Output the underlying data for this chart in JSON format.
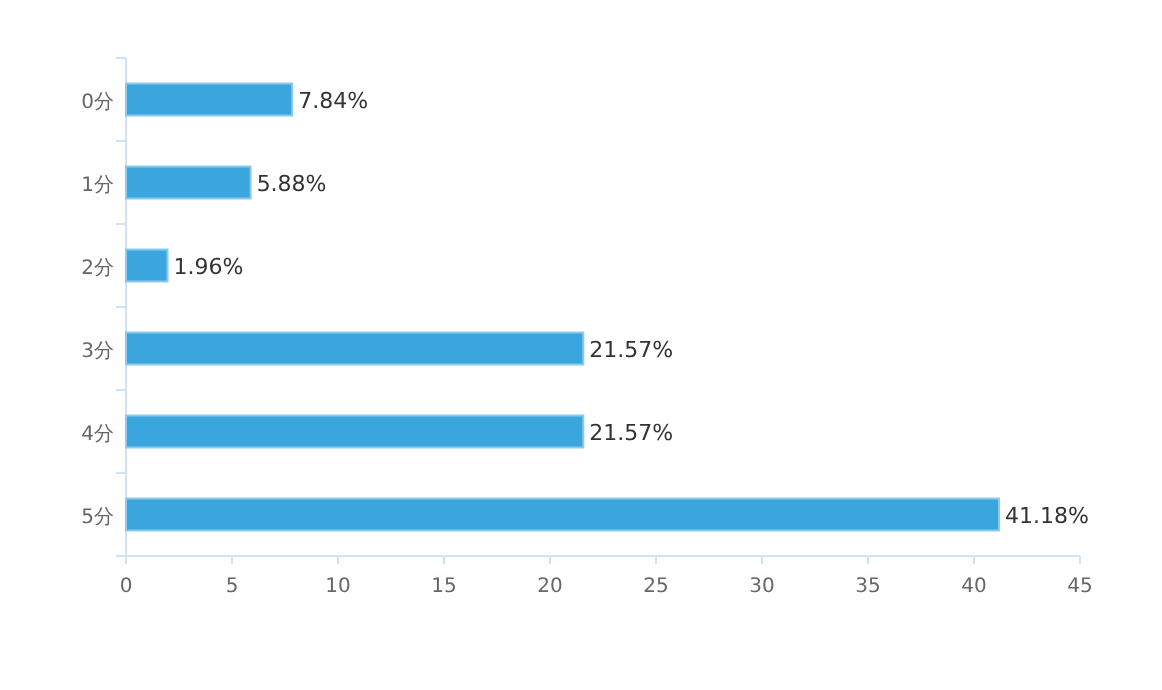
{
  "chart_data": {
    "type": "bar",
    "orientation": "horizontal",
    "categories": [
      "0分",
      "1分",
      "2分",
      "3分",
      "4分",
      "5分"
    ],
    "values": [
      7.84,
      5.88,
      1.96,
      21.57,
      21.57,
      41.18
    ],
    "value_labels": [
      "7.84%",
      "5.88%",
      "1.96%",
      "21.57%",
      "21.57%",
      "41.18%"
    ],
    "color": "#3aa6dd",
    "xlim": [
      0,
      45
    ],
    "xticks": [
      0,
      5,
      10,
      15,
      20,
      25,
      30,
      35,
      40,
      45
    ]
  }
}
